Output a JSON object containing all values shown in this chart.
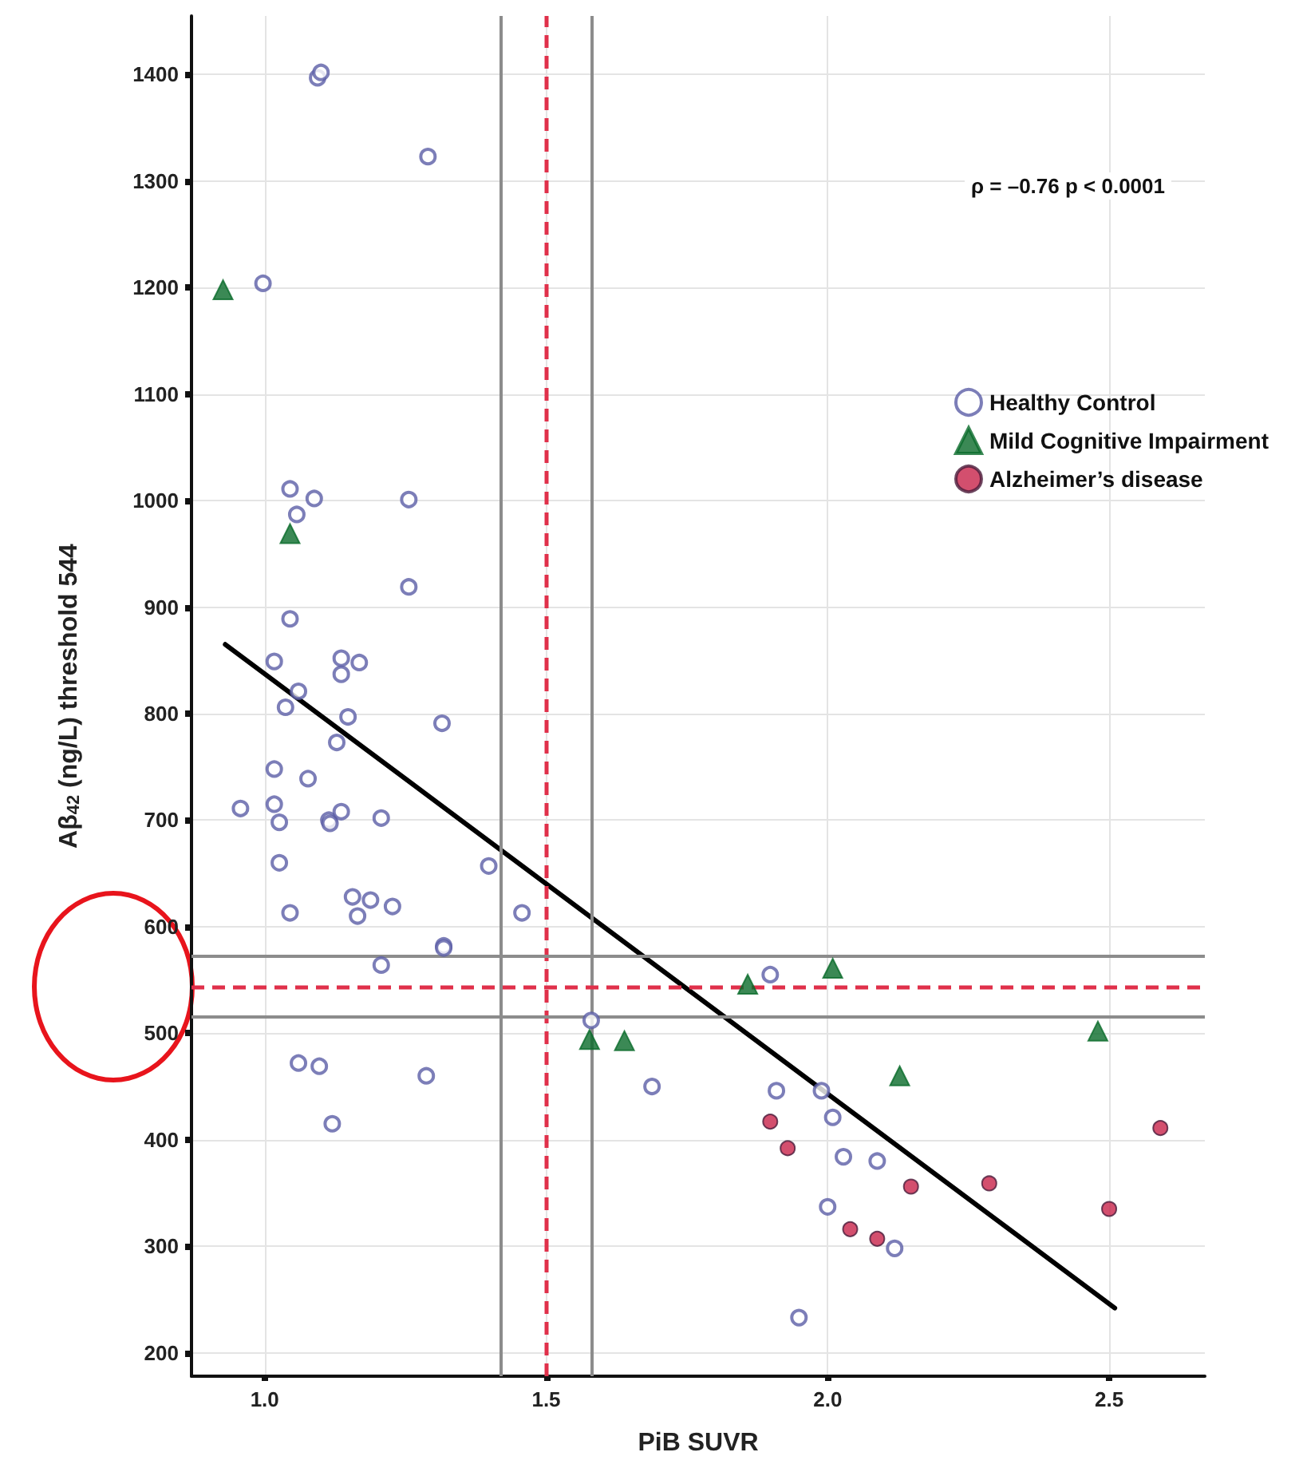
{
  "chart_data": {
    "type": "scatter",
    "xlabel": "PiB SUVR",
    "ylabel": "Aβ$_{42}$ (ng/L) threshold 544",
    "xlim": [
      0.87,
      2.67
    ],
    "ylim": [
      178,
      1455
    ],
    "xticks": [
      {
        "value": 1,
        "label": "1.0"
      },
      {
        "value": 1.5,
        "label": "1.5"
      },
      {
        "value": 2,
        "label": "2.0"
      },
      {
        "value": 2.5,
        "label": "2.5"
      }
    ],
    "yticks": [
      200,
      300,
      400,
      500,
      600,
      700,
      800,
      900,
      1000,
      1100,
      1200,
      1300,
      1400
    ],
    "grid": true,
    "legend": "top right",
    "annotations": [
      "ρ = –0.76 p < 0.0001"
    ],
    "ref_lines": [
      {
        "axis": "x",
        "value": 1.5,
        "color": "#e0304a",
        "line_style": "dashed"
      },
      {
        "axis": "x",
        "value": 1.42,
        "color": "#8c8c8c",
        "line_style": "solid"
      },
      {
        "axis": "x",
        "value": 1.58,
        "color": "#8c8c8c",
        "line_style": "solid"
      },
      {
        "axis": "y",
        "value": 544,
        "color": "#e0304a",
        "line_style": "dashed"
      },
      {
        "axis": "y",
        "value": 572,
        "color": "#8c8c8c",
        "line_style": "solid"
      },
      {
        "axis": "y",
        "value": 516,
        "color": "#8c8c8c",
        "line_style": "solid"
      }
    ],
    "series": [
      {
        "name": "Healthy Control",
        "color": "#5b5ea6",
        "marker": "circle",
        "x": [
          1.094,
          1.1,
          1.29,
          0.997,
          1.045,
          1.088,
          1.057,
          1.256,
          1.256,
          1.045,
          1.017,
          1.136,
          1.168,
          1.136,
          1.06,
          1.037,
          1.148,
          1.315,
          1.128,
          1.017,
          1.077,
          0.957,
          1.017,
          1.026,
          1.114,
          1.116,
          1.136,
          1.207,
          1.026,
          1.398,
          1.045,
          1.156,
          1.188,
          1.227,
          1.165,
          1.457,
          1.318,
          1.318,
          1.207,
          1.06,
          1.097,
          1.287,
          1.12,
          1.58,
          1.898,
          1.688,
          1.909,
          1.989,
          2.009,
          2.028,
          2.088,
          2.0,
          2.119,
          1.949
        ],
        "values": [
          1397,
          1402,
          1323,
          1204,
          1011,
          1002,
          987,
          1001,
          919,
          889,
          849,
          852,
          848,
          837,
          821,
          806,
          797,
          791,
          773,
          748,
          739,
          711,
          715,
          698,
          700,
          697,
          708,
          702,
          660,
          657,
          613,
          628,
          625,
          619,
          610,
          613,
          582,
          580,
          564,
          472,
          469,
          460,
          415,
          512,
          555,
          450,
          446,
          446,
          421,
          384,
          380,
          337,
          298,
          233
        ]
      },
      {
        "name": "Mild Cognitive Impairment",
        "color": "#0a6b2a",
        "marker": "triangle",
        "x": [
          0.926,
          1.045,
          1.577,
          1.639,
          1.858,
          2.009,
          2.128,
          2.48
        ],
        "values": [
          1198,
          969,
          494,
          493,
          546,
          561,
          460,
          502
        ]
      },
      {
        "name": "Alzheimer’s disease",
        "color": "#c8234a",
        "marker": "circle",
        "x": [
          1.898,
          1.929,
          2.148,
          2.287,
          2.04,
          2.088,
          2.5,
          2.591
        ],
        "values": [
          417,
          392,
          356,
          359,
          316,
          307,
          335,
          411
        ]
      },
      {
        "type": "line",
        "color": "#000000",
        "marker": "none",
        "x": [
          0.93,
          2.51
        ],
        "values": [
          865,
          242
        ]
      }
    ]
  }
}
